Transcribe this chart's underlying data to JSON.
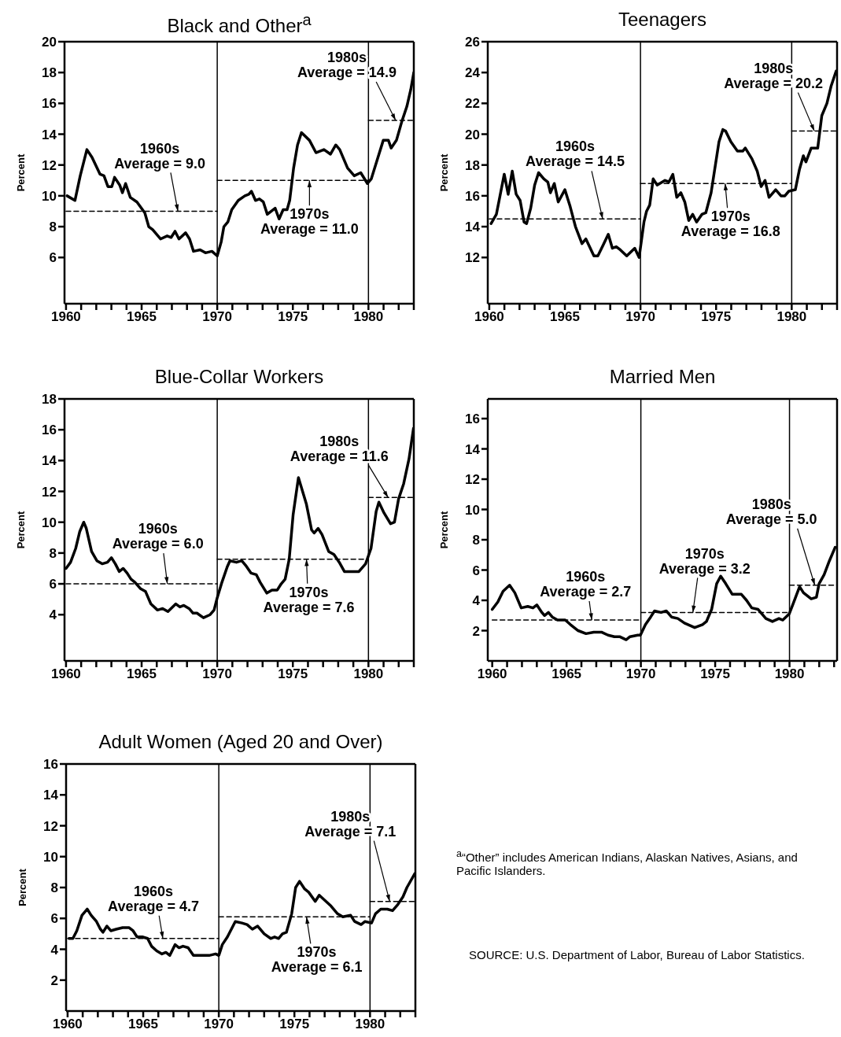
{
  "chart_data": [
    {
      "type": "line",
      "title": "Black and Other$^{a}$",
      "ylabel": "Percent",
      "xlim": [
        1959.9,
        1983.0
      ],
      "ylim": [
        3,
        20
      ],
      "yticks": [
        6,
        8,
        10,
        12,
        14,
        16,
        18,
        20
      ],
      "xticks": [
        {
          "value": 1960,
          "label": "1960"
        },
        {
          "value": 1961,
          "label": null
        },
        {
          "value": 1962,
          "label": null
        },
        {
          "value": 1963,
          "label": null
        },
        {
          "value": 1964,
          "label": null
        },
        {
          "value": 1965,
          "label": "1965"
        },
        {
          "value": 1966,
          "label": null
        },
        {
          "value": 1967,
          "label": null
        },
        {
          "value": 1968,
          "label": null
        },
        {
          "value": 1969,
          "label": null
        },
        {
          "value": 1970,
          "label": "1970"
        },
        {
          "value": 1971,
          "label": null
        },
        {
          "value": 1972,
          "label": null
        },
        {
          "value": 1973,
          "label": null
        },
        {
          "value": 1974,
          "label": null
        },
        {
          "value": 1975,
          "label": "1975"
        },
        {
          "value": 1976,
          "label": null
        },
        {
          "value": 1977,
          "label": null
        },
        {
          "value": 1978,
          "label": null
        },
        {
          "value": 1979,
          "label": null
        },
        {
          "value": 1980,
          "label": "1980"
        },
        {
          "value": 1981,
          "label": null
        },
        {
          "value": 1982,
          "label": null
        },
        {
          "value": 1983,
          "label": null
        }
      ],
      "series": [
        {
          "color": "#000000",
          "line_style": "solid",
          "x": [
            1960.07,
            1960.59,
            1960.94,
            1961.38,
            1961.72,
            1962.25,
            1962.51,
            1962.77,
            1963.03,
            1963.21,
            1963.55,
            1963.73,
            1963.94,
            1964.25,
            1964.69,
            1965.21,
            1965.47,
            1965.73,
            1966.25,
            1966.69,
            1966.95,
            1967.21,
            1967.47,
            1967.91,
            1968.17,
            1968.43,
            1968.87,
            1969.22,
            1969.65,
            1970.0,
            1970.26,
            1970.44,
            1970.7,
            1970.96,
            1971.39,
            1971.83,
            1972.09,
            1972.26,
            1972.53,
            1972.79,
            1973.05,
            1973.31,
            1973.83,
            1974.09,
            1974.36,
            1974.62,
            1974.79,
            1975.05,
            1975.31,
            1975.57,
            1976.1,
            1976.53,
            1977.06,
            1977.49,
            1977.84,
            1978.1,
            1978.62,
            1979.06,
            1979.49,
            1979.93,
            1980.19,
            1980.63,
            1980.98,
            1981.32,
            1981.5,
            1981.85,
            1982.2,
            1982.54,
            1982.8,
            1983.0
          ],
          "values": [
            10.0,
            9.7,
            11.3,
            13.0,
            12.5,
            11.4,
            11.3,
            10.6,
            10.6,
            11.2,
            10.7,
            10.2,
            10.8,
            9.9,
            9.6,
            8.9,
            8.0,
            7.8,
            7.2,
            7.4,
            7.3,
            7.7,
            7.2,
            7.6,
            7.2,
            6.4,
            6.5,
            6.3,
            6.4,
            6.1,
            7.0,
            8.0,
            8.3,
            9.1,
            9.7,
            10.0,
            10.1,
            10.3,
            9.7,
            9.8,
            9.6,
            8.8,
            9.2,
            8.5,
            9.1,
            9.1,
            9.7,
            11.8,
            13.3,
            14.1,
            13.6,
            12.8,
            13.0,
            12.7,
            13.3,
            13.0,
            11.8,
            11.3,
            11.5,
            10.8,
            11.1,
            12.5,
            13.6,
            13.6,
            13.1,
            13.6,
            14.8,
            15.8,
            16.9,
            18.0
          ]
        },
        {
          "color": "#000000",
          "line_style": "dashed",
          "x": [
            1960,
            1970
          ],
          "values": [
            9.0,
            9.0
          ]
        },
        {
          "color": "#000000",
          "line_style": "dashed",
          "x": [
            1970,
            1980
          ],
          "values": [
            11.0,
            11.0
          ]
        },
        {
          "color": "#000000",
          "line_style": "dashed",
          "x": [
            1980,
            1983
          ],
          "values": [
            14.9,
            14.9
          ]
        }
      ],
      "ref_lines": [
        {
          "axis": "x",
          "value": 1970
        },
        {
          "axis": "x",
          "value": 1980
        }
      ],
      "annotations": [
        {
          "text": "1960s\nAverage = 9.0",
          "x": 1967.4,
          "y": 9.0
        },
        {
          "text": "1970s\nAverage = 11.0",
          "x": 1976.1,
          "y": 11.0
        },
        {
          "text": "1980s\nAverage = 14.9",
          "x": 1981.8,
          "y": 14.9
        }
      ]
    },
    {
      "type": "line",
      "title": "Teenagers",
      "ylabel": "Percent",
      "xlim": [
        1959.9,
        1983.0
      ],
      "ylim": [
        9,
        26
      ],
      "yticks": [
        12,
        14,
        16,
        18,
        20,
        22,
        24,
        26
      ],
      "xticks": [
        {
          "value": 1960,
          "label": "1960"
        },
        {
          "value": 1961,
          "label": null
        },
        {
          "value": 1962,
          "label": null
        },
        {
          "value": 1963,
          "label": null
        },
        {
          "value": 1964,
          "label": null
        },
        {
          "value": 1965,
          "label": "1965"
        },
        {
          "value": 1966,
          "label": null
        },
        {
          "value": 1967,
          "label": null
        },
        {
          "value": 1968,
          "label": null
        },
        {
          "value": 1969,
          "label": null
        },
        {
          "value": 1970,
          "label": "1970"
        },
        {
          "value": 1971,
          "label": null
        },
        {
          "value": 1972,
          "label": null
        },
        {
          "value": 1973,
          "label": null
        },
        {
          "value": 1974,
          "label": null
        },
        {
          "value": 1975,
          "label": "1975"
        },
        {
          "value": 1976,
          "label": null
        },
        {
          "value": 1977,
          "label": null
        },
        {
          "value": 1978,
          "label": null
        },
        {
          "value": 1979,
          "label": null
        },
        {
          "value": 1980,
          "label": "1980"
        },
        {
          "value": 1981,
          "label": null
        },
        {
          "value": 1982,
          "label": null
        },
        {
          "value": 1983,
          "label": null
        }
      ],
      "series": [
        {
          "color": "#000000",
          "line_style": "solid",
          "x": [
            1960.12,
            1960.47,
            1960.99,
            1961.25,
            1961.52,
            1961.78,
            1962.04,
            1962.3,
            1962.47,
            1962.74,
            1963.0,
            1963.26,
            1963.61,
            1963.87,
            1964.04,
            1964.3,
            1964.56,
            1965.0,
            1965.35,
            1965.7,
            1966.13,
            1966.39,
            1966.92,
            1967.18,
            1967.53,
            1967.87,
            1968.14,
            1968.4,
            1968.66,
            1969.09,
            1969.62,
            1969.91,
            1970.23,
            1970.4,
            1970.61,
            1970.84,
            1971.1,
            1971.62,
            1971.88,
            1972.14,
            1972.4,
            1972.67,
            1972.93,
            1973.19,
            1973.45,
            1973.71,
            1974.06,
            1974.32,
            1974.67,
            1975.19,
            1975.45,
            1975.63,
            1975.98,
            1976.41,
            1976.76,
            1976.93,
            1977.37,
            1977.72,
            1977.98,
            1978.24,
            1978.5,
            1978.94,
            1979.29,
            1979.55,
            1979.81,
            1980.24,
            1980.51,
            1980.77,
            1980.94,
            1981.29,
            1981.72,
            1981.99,
            1982.33,
            1982.6,
            1982.94
          ],
          "values": [
            14.2,
            14.8,
            17.4,
            16.1,
            17.6,
            16.1,
            15.7,
            14.3,
            14.2,
            15.2,
            16.7,
            17.5,
            17.1,
            16.9,
            16.2,
            16.8,
            15.6,
            16.4,
            15.3,
            14.0,
            12.9,
            13.2,
            12.1,
            12.1,
            12.8,
            13.5,
            12.6,
            12.7,
            12.5,
            12.1,
            12.6,
            12.0,
            14.3,
            15.0,
            15.4,
            17.1,
            16.7,
            17.0,
            16.9,
            17.4,
            15.9,
            16.2,
            15.6,
            14.4,
            14.8,
            14.3,
            14.8,
            14.9,
            16.2,
            19.5,
            20.3,
            20.2,
            19.5,
            18.9,
            18.9,
            19.1,
            18.4,
            17.6,
            16.6,
            17.0,
            15.9,
            16.4,
            16.0,
            16.0,
            16.3,
            16.4,
            17.7,
            18.6,
            18.2,
            19.1,
            19.1,
            21.2,
            22.0,
            23.1,
            24.1
          ]
        },
        {
          "color": "#000000",
          "line_style": "dashed",
          "x": [
            1960,
            1970
          ],
          "values": [
            14.5,
            14.5
          ]
        },
        {
          "color": "#000000",
          "line_style": "dashed",
          "x": [
            1970,
            1980
          ],
          "values": [
            16.8,
            16.8
          ]
        },
        {
          "color": "#000000",
          "line_style": "dashed",
          "x": [
            1980,
            1983
          ],
          "values": [
            20.2,
            20.2
          ]
        }
      ],
      "ref_lines": [
        {
          "axis": "x",
          "value": 1970
        },
        {
          "axis": "x",
          "value": 1980
        }
      ],
      "annotations": [
        {
          "text": "1960s\nAverage = 14.5",
          "x": 1967.5,
          "y": 14.5
        },
        {
          "text": "1970s\nAverage = 16.8",
          "x": 1975.6,
          "y": 16.8
        },
        {
          "text": "1980s\nAverage = 20.2",
          "x": 1981.5,
          "y": 20.2
        }
      ]
    },
    {
      "type": "line",
      "title": "Blue-Collar Workers",
      "ylabel": "Percent",
      "xlim": [
        1959.9,
        1983.0
      ],
      "ylim": [
        1,
        18
      ],
      "yticks": [
        4,
        6,
        8,
        10,
        12,
        14,
        16,
        18
      ],
      "xticks": [
        {
          "value": 1960,
          "label": "1960"
        },
        {
          "value": 1961,
          "label": null
        },
        {
          "value": 1962,
          "label": null
        },
        {
          "value": 1963,
          "label": null
        },
        {
          "value": 1964,
          "label": null
        },
        {
          "value": 1965,
          "label": "1965"
        },
        {
          "value": 1966,
          "label": null
        },
        {
          "value": 1967,
          "label": null
        },
        {
          "value": 1968,
          "label": null
        },
        {
          "value": 1969,
          "label": null
        },
        {
          "value": 1970,
          "label": "1970"
        },
        {
          "value": 1971,
          "label": null
        },
        {
          "value": 1972,
          "label": null
        },
        {
          "value": 1973,
          "label": null
        },
        {
          "value": 1974,
          "label": null
        },
        {
          "value": 1975,
          "label": "1975"
        },
        {
          "value": 1976,
          "label": null
        },
        {
          "value": 1977,
          "label": null
        },
        {
          "value": 1978,
          "label": null
        },
        {
          "value": 1979,
          "label": null
        },
        {
          "value": 1980,
          "label": "1980"
        },
        {
          "value": 1981,
          "label": null
        },
        {
          "value": 1982,
          "label": null
        },
        {
          "value": 1983,
          "label": null
        }
      ],
      "series": [
        {
          "color": "#000000",
          "line_style": "solid",
          "x": [
            1960.0,
            1960.3,
            1960.64,
            1960.91,
            1961.17,
            1961.34,
            1961.69,
            1962.04,
            1962.39,
            1962.74,
            1963.0,
            1963.26,
            1963.52,
            1963.78,
            1964.04,
            1964.3,
            1964.56,
            1964.91,
            1965.26,
            1965.61,
            1966.05,
            1966.39,
            1966.74,
            1967.26,
            1967.53,
            1967.79,
            1968.14,
            1968.4,
            1968.66,
            1969.09,
            1969.53,
            1969.79,
            1970.0,
            1970.31,
            1970.66,
            1970.84,
            1971.27,
            1971.62,
            1971.88,
            1972.23,
            1972.58,
            1972.84,
            1973.28,
            1973.62,
            1973.97,
            1974.23,
            1974.49,
            1974.76,
            1975.02,
            1975.37,
            1975.89,
            1976.24,
            1976.41,
            1976.67,
            1976.93,
            1977.37,
            1977.72,
            1978.07,
            1978.41,
            1978.85,
            1979.37,
            1979.81,
            1980.17,
            1980.51,
            1980.69,
            1981.03,
            1981.46,
            1981.72,
            1981.99,
            1982.33,
            1982.68,
            1982.98
          ],
          "values": [
            7.0,
            7.4,
            8.3,
            9.4,
            10.0,
            9.6,
            8.1,
            7.5,
            7.3,
            7.4,
            7.7,
            7.3,
            6.8,
            7.0,
            6.7,
            6.3,
            6.1,
            5.7,
            5.5,
            4.7,
            4.3,
            4.4,
            4.2,
            4.7,
            4.5,
            4.6,
            4.4,
            4.1,
            4.1,
            3.8,
            4.0,
            4.3,
            5.1,
            6.1,
            7.1,
            7.5,
            7.4,
            7.5,
            7.2,
            6.7,
            6.6,
            6.1,
            5.4,
            5.6,
            5.6,
            6.0,
            6.3,
            7.6,
            10.5,
            12.9,
            11.2,
            9.5,
            9.3,
            9.6,
            9.2,
            8.1,
            7.9,
            7.4,
            6.8,
            6.8,
            6.8,
            7.3,
            8.3,
            10.7,
            11.3,
            10.6,
            9.9,
            10.0,
            11.5,
            12.5,
            14.1,
            16.1
          ]
        },
        {
          "color": "#000000",
          "line_style": "dashed",
          "x": [
            1960,
            1970
          ],
          "values": [
            6.0,
            6.0
          ]
        },
        {
          "color": "#000000",
          "line_style": "dashed",
          "x": [
            1970,
            1980
          ],
          "values": [
            7.6,
            7.6
          ]
        },
        {
          "color": "#000000",
          "line_style": "dashed",
          "x": [
            1980,
            1983
          ],
          "values": [
            11.6,
            11.6
          ]
        }
      ],
      "ref_lines": [
        {
          "axis": "x",
          "value": 1970
        },
        {
          "axis": "x",
          "value": 1980
        }
      ],
      "annotations": [
        {
          "text": "1960s\nAverage = 6.0",
          "x": 1966.7,
          "y": 6.0
        },
        {
          "text": "1970s\nAverage = 7.6",
          "x": 1975.9,
          "y": 7.6
        },
        {
          "text": "1980s\nAverage = 11.6",
          "x": 1981.3,
          "y": 11.6
        }
      ]
    },
    {
      "type": "line",
      "title": "Married Men",
      "ylabel": "Percent",
      "xlim": [
        1959.7,
        1983.2
      ],
      "ylim": [
        0,
        17.3
      ],
      "yticks": [
        2,
        4,
        6,
        8,
        10,
        12,
        14,
        16
      ],
      "xticks": [
        {
          "value": 1960,
          "label": "1960"
        },
        {
          "value": 1961,
          "label": null
        },
        {
          "value": 1962,
          "label": null
        },
        {
          "value": 1963,
          "label": null
        },
        {
          "value": 1964,
          "label": null
        },
        {
          "value": 1965,
          "label": "1965"
        },
        {
          "value": 1966,
          "label": null
        },
        {
          "value": 1967,
          "label": null
        },
        {
          "value": 1968,
          "label": null
        },
        {
          "value": 1969,
          "label": null
        },
        {
          "value": 1970,
          "label": "1970"
        },
        {
          "value": 1971,
          "label": null
        },
        {
          "value": 1972,
          "label": null
        },
        {
          "value": 1973,
          "label": null
        },
        {
          "value": 1974,
          "label": null
        },
        {
          "value": 1975,
          "label": "1975"
        },
        {
          "value": 1976,
          "label": null
        },
        {
          "value": 1977,
          "label": null
        },
        {
          "value": 1978,
          "label": null
        },
        {
          "value": 1979,
          "label": null
        },
        {
          "value": 1980,
          "label": "1980"
        },
        {
          "value": 1981,
          "label": null
        },
        {
          "value": 1982,
          "label": null
        },
        {
          "value": 1983,
          "label": null
        }
      ],
      "series": [
        {
          "color": "#000000",
          "line_style": "solid",
          "x": [
            1960.0,
            1960.38,
            1960.73,
            1961.17,
            1961.52,
            1961.95,
            1962.39,
            1962.74,
            1963.0,
            1963.34,
            1963.52,
            1963.78,
            1964.04,
            1964.39,
            1964.91,
            1965.26,
            1965.78,
            1966.31,
            1966.83,
            1967.35,
            1967.79,
            1968.22,
            1968.57,
            1969.01,
            1969.27,
            1969.79,
            1969.97,
            1970.31,
            1970.66,
            1970.92,
            1971.36,
            1971.71,
            1972.06,
            1972.49,
            1972.93,
            1973.62,
            1974.15,
            1974.41,
            1974.76,
            1975.1,
            1975.37,
            1975.71,
            1976.15,
            1976.76,
            1977.11,
            1977.46,
            1977.89,
            1978.41,
            1978.85,
            1979.29,
            1979.55,
            1979.98,
            1980.33,
            1980.68,
            1980.94,
            1981.46,
            1981.81,
            1981.99,
            1982.33,
            1982.68,
            1983.07
          ],
          "values": [
            3.4,
            3.9,
            4.6,
            5.0,
            4.5,
            3.5,
            3.6,
            3.5,
            3.7,
            3.2,
            3.0,
            3.2,
            2.9,
            2.7,
            2.7,
            2.4,
            2.0,
            1.8,
            1.9,
            1.9,
            1.7,
            1.6,
            1.6,
            1.4,
            1.6,
            1.7,
            1.7,
            2.4,
            2.9,
            3.3,
            3.2,
            3.3,
            2.9,
            2.8,
            2.5,
            2.2,
            2.4,
            2.6,
            3.4,
            5.1,
            5.6,
            5.1,
            4.4,
            4.4,
            4.0,
            3.5,
            3.4,
            2.8,
            2.6,
            2.8,
            2.7,
            3.1,
            4.0,
            4.9,
            4.5,
            4.1,
            4.2,
            5.1,
            5.7,
            6.6,
            7.5
          ]
        },
        {
          "color": "#000000",
          "line_style": "dashed",
          "x": [
            1960,
            1970
          ],
          "values": [
            2.7,
            2.7
          ]
        },
        {
          "color": "#000000",
          "line_style": "dashed",
          "x": [
            1970,
            1980
          ],
          "values": [
            3.2,
            3.2
          ]
        },
        {
          "color": "#000000",
          "line_style": "dashed",
          "x": [
            1980,
            1983.2
          ],
          "values": [
            5.0,
            5.0
          ]
        }
      ],
      "ref_lines": [
        {
          "axis": "x",
          "value": 1970
        },
        {
          "axis": "x",
          "value": 1980
        }
      ],
      "annotations": [
        {
          "text": "1960s\nAverage = 2.7",
          "x": 1966.7,
          "y": 2.7
        },
        {
          "text": "1970s\nAverage = 3.2",
          "x": 1973.5,
          "y": 3.2
        },
        {
          "text": "1980s\nAverage = 5.0",
          "x": 1981.7,
          "y": 5.0
        }
      ]
    },
    {
      "type": "line",
      "title": "Adult Women (Aged 20 and Over)",
      "ylabel": "Percent",
      "xlim": [
        1959.9,
        1983.0
      ],
      "ylim": [
        0,
        16
      ],
      "yticks": [
        2,
        4,
        6,
        8,
        10,
        12,
        14,
        16
      ],
      "xticks": [
        {
          "value": 1960,
          "label": "1960"
        },
        {
          "value": 1961,
          "label": null
        },
        {
          "value": 1962,
          "label": null
        },
        {
          "value": 1963,
          "label": null
        },
        {
          "value": 1964,
          "label": null
        },
        {
          "value": 1965,
          "label": "1965"
        },
        {
          "value": 1966,
          "label": null
        },
        {
          "value": 1967,
          "label": null
        },
        {
          "value": 1968,
          "label": null
        },
        {
          "value": 1969,
          "label": null
        },
        {
          "value": 1970,
          "label": "1970"
        },
        {
          "value": 1971,
          "label": null
        },
        {
          "value": 1972,
          "label": null
        },
        {
          "value": 1973,
          "label": null
        },
        {
          "value": 1974,
          "label": null
        },
        {
          "value": 1975,
          "label": "1975"
        },
        {
          "value": 1976,
          "label": null
        },
        {
          "value": 1977,
          "label": null
        },
        {
          "value": 1978,
          "label": null
        },
        {
          "value": 1979,
          "label": null
        },
        {
          "value": 1980,
          "label": "1980"
        },
        {
          "value": 1981,
          "label": null
        },
        {
          "value": 1982,
          "label": null
        },
        {
          "value": 1983,
          "label": null
        }
      ],
      "series": [
        {
          "color": "#000000",
          "line_style": "solid",
          "x": [
            1960.09,
            1960.35,
            1960.61,
            1960.95,
            1961.3,
            1961.56,
            1961.91,
            1962.17,
            1962.34,
            1962.6,
            1962.86,
            1963.21,
            1963.64,
            1964.07,
            1964.33,
            1964.59,
            1964.94,
            1965.29,
            1965.55,
            1965.89,
            1966.24,
            1966.5,
            1966.76,
            1967.11,
            1967.37,
            1967.63,
            1967.97,
            1968.32,
            1968.58,
            1968.93,
            1969.36,
            1969.79,
            1970.0,
            1970.23,
            1970.57,
            1971.09,
            1971.53,
            1971.87,
            1972.22,
            1972.57,
            1973.0,
            1973.43,
            1973.69,
            1973.95,
            1974.21,
            1974.47,
            1974.82,
            1975.08,
            1975.34,
            1975.68,
            1975.94,
            1976.38,
            1976.64,
            1976.98,
            1977.42,
            1977.85,
            1978.2,
            1978.72,
            1978.98,
            1979.41,
            1979.67,
            1980.1,
            1980.36,
            1980.71,
            1981.14,
            1981.49,
            1981.84,
            1982.18,
            1982.44,
            1982.96
          ],
          "values": [
            4.7,
            4.7,
            5.2,
            6.2,
            6.6,
            6.2,
            5.8,
            5.3,
            5.1,
            5.5,
            5.2,
            5.3,
            5.4,
            5.4,
            5.2,
            4.8,
            4.8,
            4.7,
            4.2,
            3.9,
            3.7,
            3.8,
            3.6,
            4.3,
            4.1,
            4.2,
            4.1,
            3.6,
            3.6,
            3.6,
            3.6,
            3.7,
            3.6,
            4.3,
            4.8,
            5.8,
            5.7,
            5.6,
            5.3,
            5.5,
            5.0,
            4.7,
            4.8,
            4.7,
            5.0,
            5.1,
            6.3,
            8.0,
            8.4,
            7.9,
            7.7,
            7.1,
            7.5,
            7.2,
            6.8,
            6.3,
            6.1,
            6.2,
            5.8,
            5.6,
            5.8,
            5.7,
            6.3,
            6.6,
            6.6,
            6.5,
            6.9,
            7.4,
            8.0,
            8.9
          ]
        },
        {
          "color": "#000000",
          "line_style": "dashed",
          "x": [
            1960,
            1970
          ],
          "values": [
            4.7,
            4.7
          ]
        },
        {
          "color": "#000000",
          "line_style": "dashed",
          "x": [
            1970,
            1980
          ],
          "values": [
            6.1,
            6.1
          ]
        },
        {
          "color": "#000000",
          "line_style": "dashed",
          "x": [
            1980,
            1983
          ],
          "values": [
            7.1,
            7.1
          ]
        }
      ],
      "ref_lines": [
        {
          "axis": "x",
          "value": 1970
        },
        {
          "axis": "x",
          "value": 1980
        }
      ],
      "annotations": [
        {
          "text": "1960s\nAverage = 4.7",
          "x": 1966.3,
          "y": 4.7
        },
        {
          "text": "1970s\nAverage = 6.1",
          "x": 1975.8,
          "y": 6.1
        },
        {
          "text": "1980s\nAverage = 7.1",
          "x": 1981.3,
          "y": 7.1
        }
      ]
    },
    {
      "type": "other",
      "annotations": [
        "$^{a}$“Other” includes American Indians, Alaskan Natives, Asians, and Pacific Islanders.",
        "SOURCE: U.S. Department of Labor, Bureau of Labor Statistics."
      ]
    }
  ]
}
